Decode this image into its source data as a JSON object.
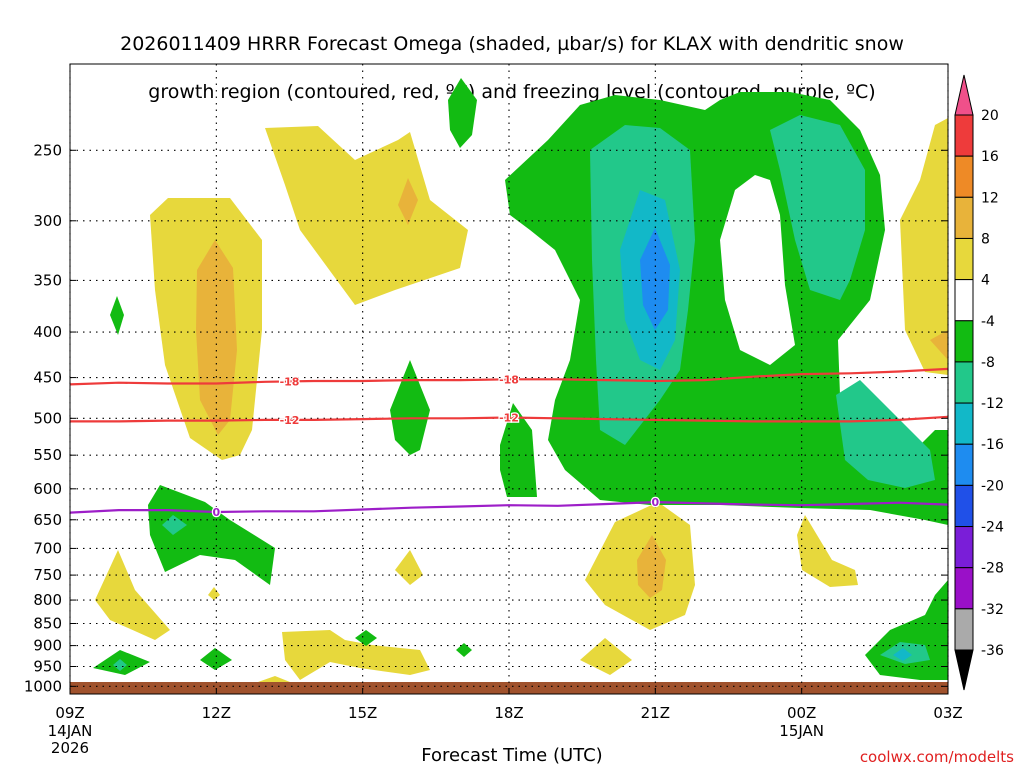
{
  "title_line1": "2026011409 HRRR Forecast Omega (shaded, µbar/s) for KLAX with dendritic snow",
  "title_line2": "growth region (contoured, red, ºC) and freezing level (contoured, purple, ºC)",
  "xlabel": "Forecast Time (UTC)",
  "credit": "coolwx.com/modelts",
  "chart_data": {
    "type": "heatmap",
    "y_ticks": [
      250,
      300,
      350,
      400,
      450,
      500,
      550,
      600,
      650,
      700,
      750,
      800,
      850,
      900,
      950,
      1000
    ],
    "x_ticks": [
      {
        "label": "09Z",
        "sub1": "14JAN",
        "sub2": "2026",
        "hour": 0
      },
      {
        "label": "12Z",
        "sub1": "",
        "sub2": "",
        "hour": 3
      },
      {
        "label": "15Z",
        "sub1": "",
        "sub2": "",
        "hour": 6
      },
      {
        "label": "18Z",
        "sub1": "",
        "sub2": "",
        "hour": 9
      },
      {
        "label": "21Z",
        "sub1": "",
        "sub2": "",
        "hour": 12
      },
      {
        "label": "00Z",
        "sub1": "15JAN",
        "sub2": "",
        "hour": 15
      },
      {
        "label": "03Z",
        "sub1": "",
        "sub2": "",
        "hour": 18
      }
    ],
    "y_range_hpa": [
      200,
      1020
    ],
    "x_range_hours": [
      0,
      18
    ],
    "grid": true,
    "colorbar_labels": [
      "20",
      "16",
      "12",
      "8",
      "4",
      "-4",
      "-8",
      "-12",
      "-16",
      "-20",
      "-24",
      "-28",
      "-32",
      "-36"
    ],
    "colorbar_colors": [
      "#f0508a",
      "#ee3b3b",
      "#ee8a26",
      "#e8b33a",
      "#e7d83c",
      "#ffffff",
      "#12bb12",
      "#22c88a",
      "#12b8c8",
      "#1e8cf0",
      "#2050e8",
      "#7a1ed8",
      "#9a10c8",
      "#aaaaaa",
      "#000000"
    ],
    "contours": [
      {
        "label": "-18",
        "color": "#ee3b3b",
        "points": [
          [
            0,
            458
          ],
          [
            1,
            456
          ],
          [
            2,
            457
          ],
          [
            3,
            457
          ],
          [
            4,
            455
          ],
          [
            5,
            454
          ],
          [
            6,
            454
          ],
          [
            7,
            453
          ],
          [
            8,
            453
          ],
          [
            9,
            452
          ],
          [
            10,
            452
          ],
          [
            11,
            453
          ],
          [
            12,
            454
          ],
          [
            13,
            453
          ],
          [
            14,
            449
          ],
          [
            15,
            446
          ],
          [
            16,
            445
          ],
          [
            17,
            443
          ],
          [
            18,
            440
          ]
        ]
      },
      {
        "label": "-12",
        "color": "#ee3b3b",
        "points": [
          [
            0,
            504
          ],
          [
            1,
            504
          ],
          [
            2,
            503
          ],
          [
            3,
            503
          ],
          [
            4,
            502
          ],
          [
            5,
            502
          ],
          [
            6,
            501
          ],
          [
            7,
            500
          ],
          [
            8,
            500
          ],
          [
            9,
            499
          ],
          [
            10,
            500
          ],
          [
            11,
            501
          ],
          [
            12,
            502
          ],
          [
            13,
            503
          ],
          [
            14,
            504
          ],
          [
            15,
            504
          ],
          [
            16,
            504
          ],
          [
            17,
            502
          ],
          [
            18,
            498
          ]
        ]
      },
      {
        "label": "0",
        "color": "#9d1ec8",
        "points": [
          [
            0,
            638
          ],
          [
            1,
            634
          ],
          [
            2,
            634
          ],
          [
            3,
            637
          ],
          [
            4,
            636
          ],
          [
            5,
            636
          ],
          [
            6,
            633
          ],
          [
            7,
            630
          ],
          [
            8,
            628
          ],
          [
            9,
            626
          ],
          [
            10,
            627
          ],
          [
            11,
            624
          ],
          [
            12,
            621
          ],
          [
            13,
            623
          ],
          [
            14,
            625
          ],
          [
            15,
            626
          ],
          [
            16,
            624
          ],
          [
            17,
            622
          ],
          [
            18,
            625
          ]
        ]
      }
    ]
  }
}
